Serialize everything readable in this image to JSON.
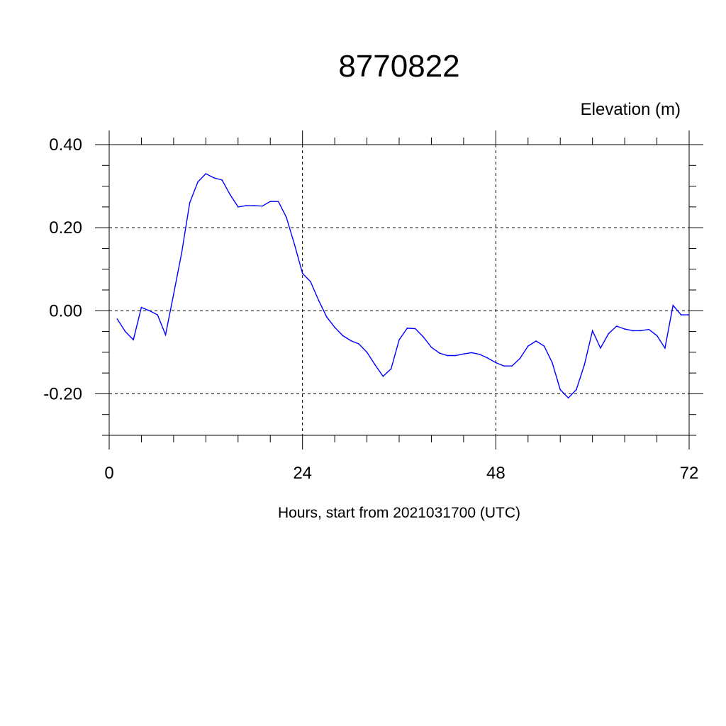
{
  "chart_data": {
    "type": "line",
    "title": "8770822",
    "xlabel": "Hours, start from 2021031700 (UTC)",
    "ylabel": "Elevation (m)",
    "xlim": [
      0,
      72
    ],
    "ylim": [
      -0.3,
      0.4
    ],
    "xticks": [
      0,
      24,
      48,
      72
    ],
    "xtick_labels": [
      "0",
      "24",
      "48",
      "72"
    ],
    "yticks": [
      -0.2,
      0.0,
      0.2,
      0.4
    ],
    "ytick_labels": [
      "-0.20",
      "0.00",
      "0.20",
      "0.40"
    ],
    "grid": true,
    "grid_style": "dashed",
    "series_color": "#0000ff",
    "series": [
      {
        "x": [
          1,
          2,
          3,
          4,
          5,
          6,
          7,
          8,
          9,
          10,
          11,
          12,
          13,
          14,
          15,
          16,
          17,
          18,
          19,
          20,
          21,
          22,
          23,
          24,
          25,
          26,
          27,
          28,
          29,
          30,
          31,
          32,
          33,
          34,
          35,
          36,
          37,
          38,
          39,
          40,
          41,
          42,
          43,
          44,
          45,
          46,
          47,
          48,
          49,
          50,
          51,
          52,
          53,
          54,
          55,
          56,
          57,
          58,
          59,
          60,
          61,
          62,
          63,
          64,
          65,
          66,
          67,
          68,
          69,
          70,
          71,
          72
        ],
        "values": [
          -0.02,
          -0.05,
          -0.07,
          0.008,
          0.0,
          -0.01,
          -0.058,
          0.04,
          0.14,
          0.26,
          0.31,
          0.33,
          0.32,
          0.315,
          0.28,
          0.25,
          0.253,
          0.253,
          0.252,
          0.263,
          0.263,
          0.225,
          0.16,
          0.09,
          0.07,
          0.025,
          -0.015,
          -0.04,
          -0.06,
          -0.072,
          -0.08,
          -0.1,
          -0.13,
          -0.158,
          -0.14,
          -0.07,
          -0.042,
          -0.043,
          -0.063,
          -0.088,
          -0.102,
          -0.108,
          -0.108,
          -0.104,
          -0.101,
          -0.105,
          -0.114,
          -0.125,
          -0.133,
          -0.133,
          -0.115,
          -0.085,
          -0.073,
          -0.085,
          -0.125,
          -0.19,
          -0.21,
          -0.19,
          -0.13,
          -0.048,
          -0.09,
          -0.055,
          -0.037,
          -0.044,
          -0.048,
          -0.048,
          -0.045,
          -0.06,
          -0.09,
          0.013,
          -0.01,
          -0.01
        ]
      }
    ]
  }
}
